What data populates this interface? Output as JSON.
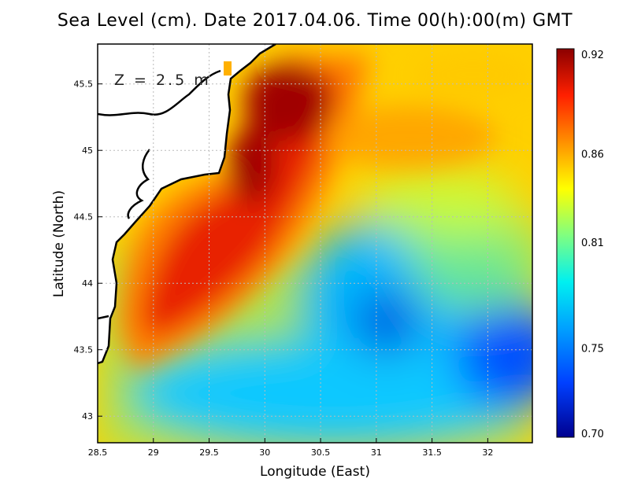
{
  "title": "Sea Level (cm). Date 2017.04.06. Time 00(h):00(m) GMT",
  "depth_label": "Z = 2.5 m",
  "xaxis": {
    "label": "Longitude (East)",
    "ticks": [
      "28.5",
      "29",
      "29.5",
      "30",
      "30.5",
      "31",
      "31.5",
      "32"
    ],
    "range": [
      28.5,
      32.4
    ]
  },
  "yaxis": {
    "label": "Latitude (North)",
    "ticks": [
      "43",
      "43.5",
      "44",
      "44.5",
      "45",
      "45.5"
    ],
    "range": [
      42.8,
      45.8
    ]
  },
  "colorbar": {
    "ticks": [
      "0.92",
      "0.86",
      "0.81",
      "0.75",
      "0.70"
    ],
    "min": 0.7,
    "max": 0.92
  },
  "grid": true
}
